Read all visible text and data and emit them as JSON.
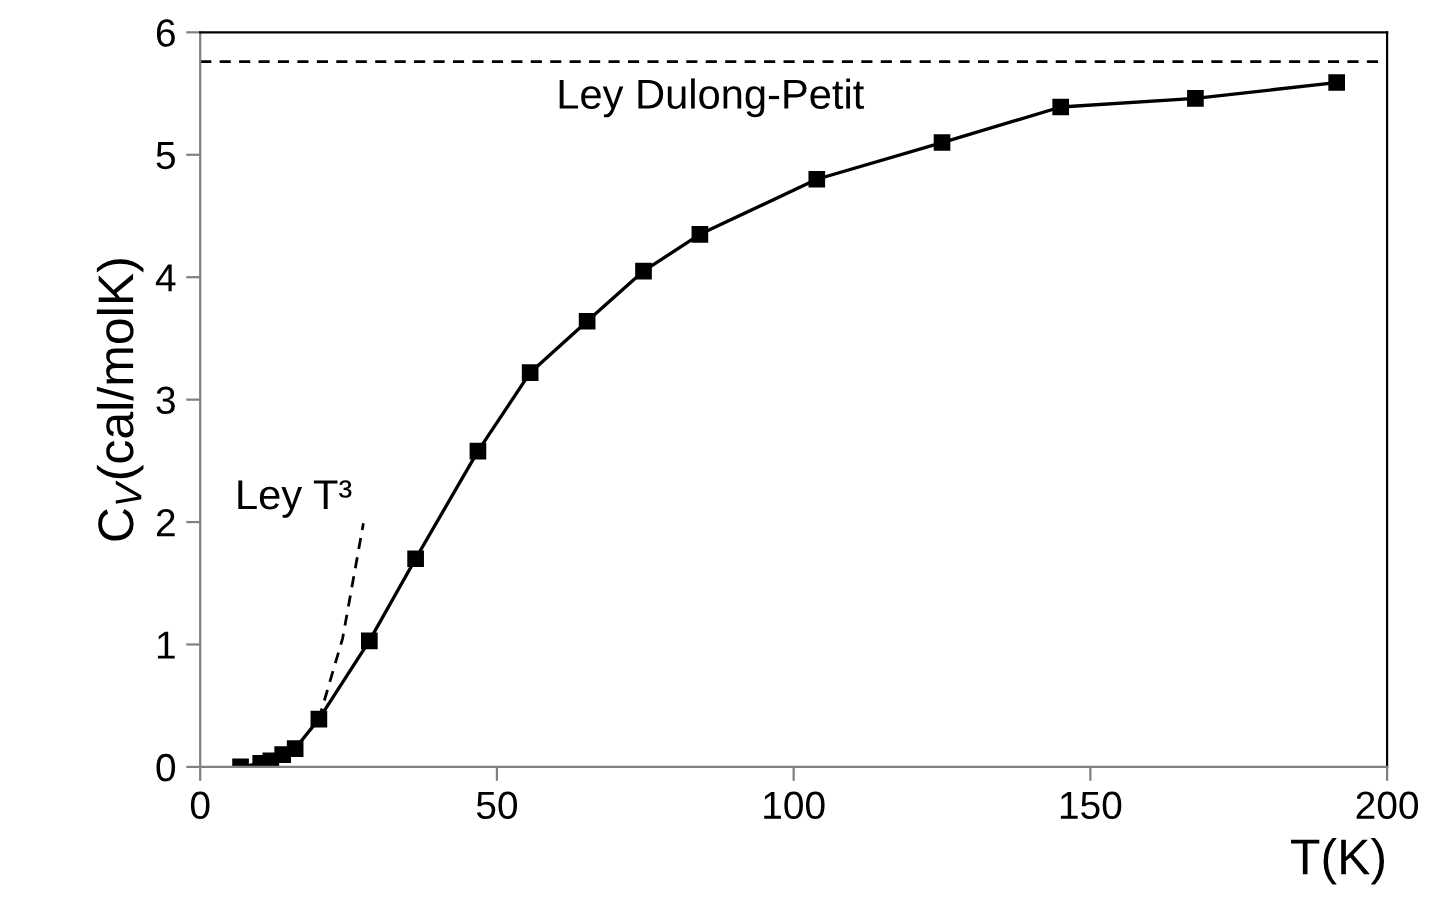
{
  "chart_data": {
    "type": "line",
    "xlabel": "T(K)",
    "ylabel": "C$_{V}$(cal/molK)",
    "xlim": [
      0,
      200
    ],
    "xticks": [
      0,
      50,
      100,
      150,
      200
    ],
    "ylim": [
      0,
      6
    ],
    "yticks": [
      0,
      1,
      2,
      3,
      4,
      5,
      6
    ],
    "grid": false,
    "legend": false,
    "series": [
      {
        "color": "#000000",
        "marker": "square",
        "line_style": "solid",
        "x": [
          6.8,
          10.2,
          11.9,
          13.9,
          16,
          20,
          28.5,
          36.3,
          46.8,
          55.6,
          65.2,
          74.7,
          84.2,
          103.9,
          125,
          145,
          167.7,
          191.5
        ],
        "values": [
          0,
          0.03,
          0.05,
          0.1,
          0.15,
          0.39,
          1.03,
          1.7,
          2.58,
          3.22,
          3.64,
          4.05,
          4.35,
          4.8,
          5.1,
          5.39,
          5.46,
          5.59
        ]
      },
      {
        "name": "Ley T³",
        "color": "#000000",
        "marker": "none",
        "line_style": "dashed",
        "x": [
          20,
          24,
          27.5
        ],
        "values": [
          0.39,
          1.05,
          1.99
        ]
      }
    ],
    "ref_lines": [
      {
        "axis": "y",
        "value": 5.76,
        "label": "Ley Dulong-Petit",
        "color": "#000000",
        "line_style": "dashed"
      }
    ]
  }
}
